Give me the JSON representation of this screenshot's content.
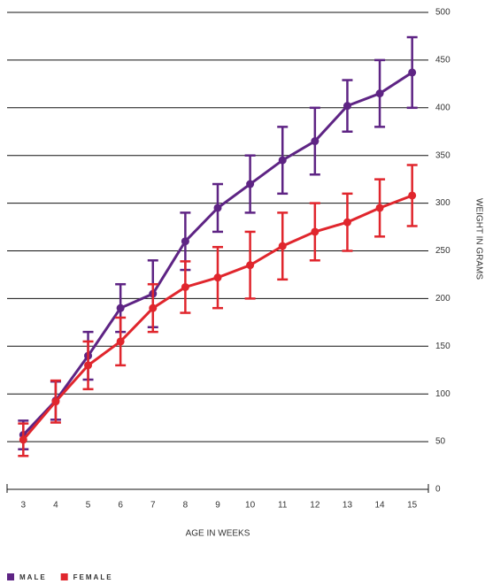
{
  "chart_data": {
    "type": "line",
    "x_label": "AGE IN WEEKS",
    "y_label": "WEIGHT IN GRAMS",
    "x": [
      3,
      4,
      5,
      6,
      7,
      8,
      9,
      10,
      11,
      12,
      13,
      14,
      15
    ],
    "xlim": [
      2.5,
      15.5
    ],
    "xticks": [
      3,
      4,
      5,
      6,
      7,
      8,
      9,
      10,
      11,
      12,
      13,
      14,
      15
    ],
    "ylim": [
      0,
      500
    ],
    "yticks": [
      0,
      50,
      100,
      150,
      200,
      250,
      300,
      350,
      400,
      450,
      500
    ],
    "grid": true,
    "legend": "bottom-left",
    "series": [
      {
        "name": "MALE",
        "color": "#5e2484",
        "values": [
          57,
          93,
          140,
          190,
          205,
          260,
          295,
          320,
          345,
          365,
          402,
          415,
          437
        ],
        "errors": [
          15,
          20,
          25,
          25,
          35,
          30,
          25,
          30,
          35,
          35,
          27,
          35,
          37
        ]
      },
      {
        "name": "FEMALE",
        "color": "#e0262d",
        "values": [
          52,
          92,
          130,
          155,
          190,
          212,
          222,
          235,
          255,
          270,
          280,
          295,
          308
        ],
        "errors": [
          17,
          22,
          25,
          25,
          25,
          27,
          32,
          35,
          35,
          30,
          30,
          30,
          32
        ]
      }
    ]
  }
}
